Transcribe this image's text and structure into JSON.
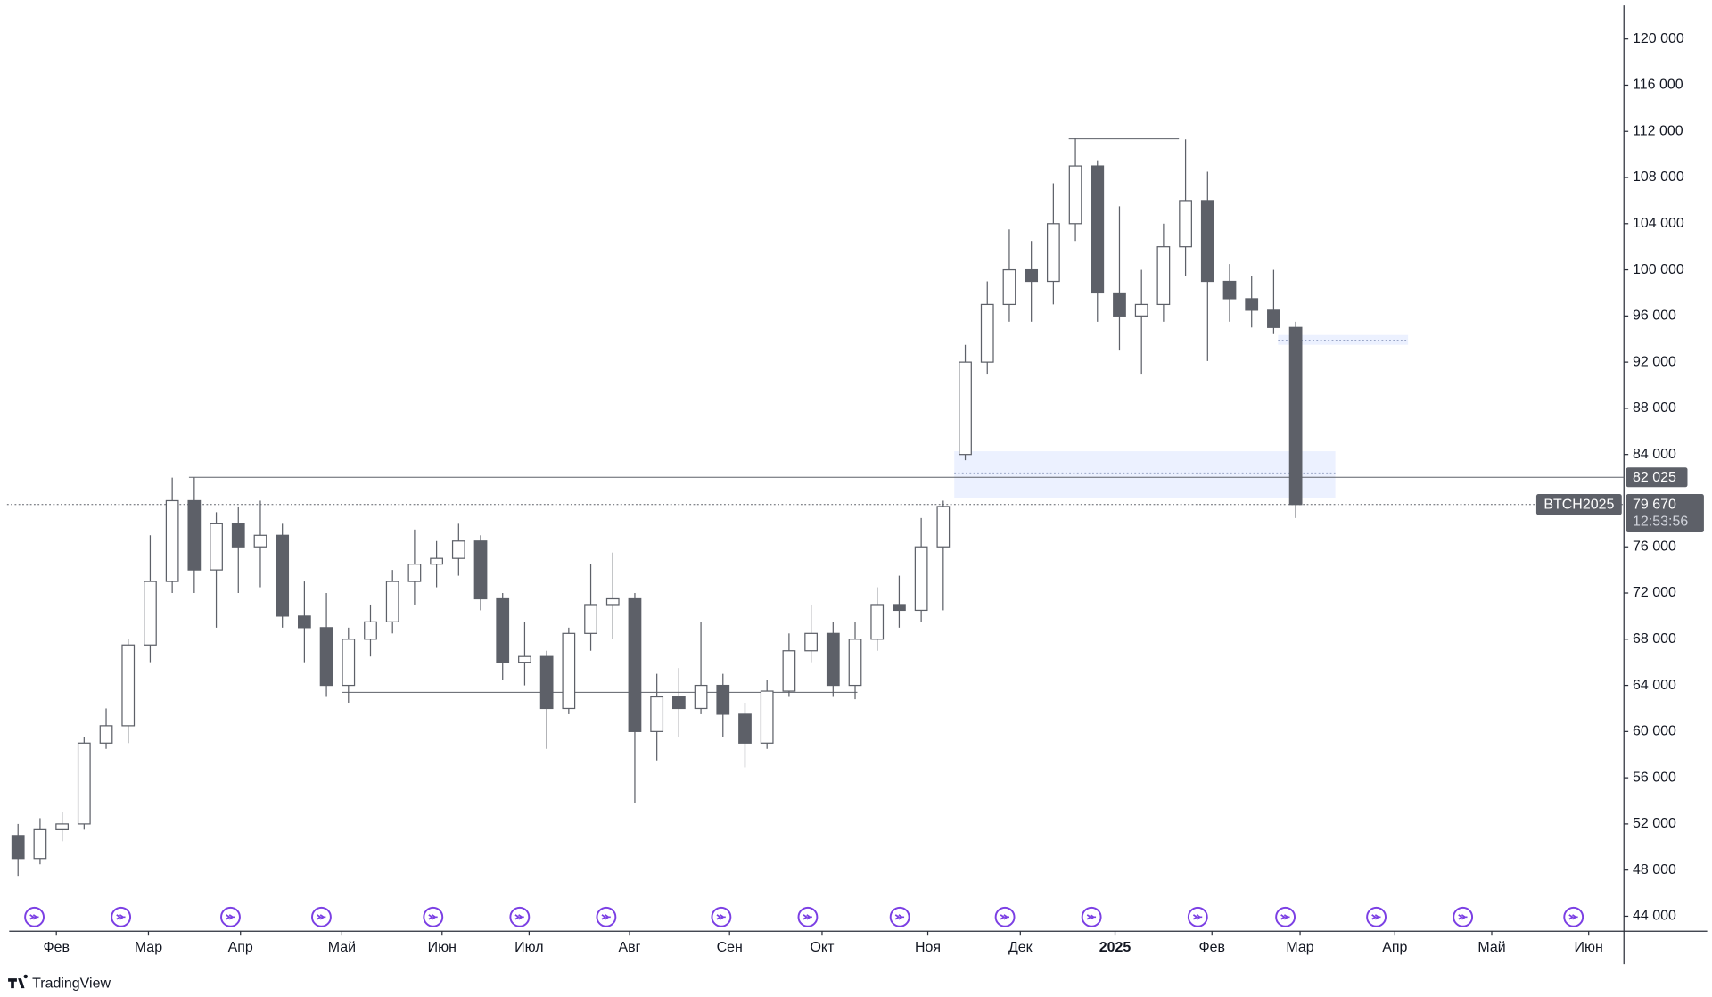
{
  "chart_data": {
    "type": "candlestick",
    "symbol": "BTCH2025",
    "countdown": "12:53:56",
    "brand": "TradingView",
    "last_price": {
      "value": 79670,
      "label": "79 670"
    },
    "up_color": "#ffffff",
    "down_color": "#5d6068",
    "xlim": [
      -0.5,
      72.9
    ],
    "ylim": [
      42700,
      122900
    ],
    "yticks": [
      {
        "value": 44000,
        "label": "44 000"
      },
      {
        "value": 48000,
        "label": "48 000"
      },
      {
        "value": 52000,
        "label": "52 000"
      },
      {
        "value": 56000,
        "label": "56 000"
      },
      {
        "value": 60000,
        "label": "60 000"
      },
      {
        "value": 64000,
        "label": "64 000"
      },
      {
        "value": 68000,
        "label": "68 000"
      },
      {
        "value": 72000,
        "label": "72 000"
      },
      {
        "value": 76000,
        "label": "76 000"
      },
      {
        "value": 84000,
        "label": "84 000"
      },
      {
        "value": 88000,
        "label": "88 000"
      },
      {
        "value": 92000,
        "label": "92 000"
      },
      {
        "value": 96000,
        "label": "96 000"
      },
      {
        "value": 100000,
        "label": "100 000"
      },
      {
        "value": 104000,
        "label": "104 000"
      },
      {
        "value": 108000,
        "label": "108 000"
      },
      {
        "value": 112000,
        "label": "112 000"
      },
      {
        "value": 116000,
        "label": "116 000"
      },
      {
        "value": 120000,
        "label": "120 000"
      }
    ],
    "xticks": [
      {
        "value": 1.74,
        "label": "Фев"
      },
      {
        "value": 5.92,
        "label": "Мар"
      },
      {
        "value": 10.1,
        "label": "Апр"
      },
      {
        "value": 14.7,
        "label": "Май"
      },
      {
        "value": 19.25,
        "label": "Июн"
      },
      {
        "value": 23.2,
        "label": "Июл"
      },
      {
        "value": 27.76,
        "label": "Авг"
      },
      {
        "value": 32.3,
        "label": "Сен"
      },
      {
        "value": 36.5,
        "label": "Окт"
      },
      {
        "value": 41.3,
        "label": "Ноя"
      },
      {
        "value": 45.5,
        "label": "Дек"
      },
      {
        "value": 49.8,
        "label": "2025"
      },
      {
        "value": 54.2,
        "label": "Фев"
      },
      {
        "value": 58.2,
        "label": "Мар"
      },
      {
        "value": 62.5,
        "label": "Апр"
      },
      {
        "value": 66.9,
        "label": "Май"
      },
      {
        "value": 71.3,
        "label": "Июн"
      }
    ],
    "open": [
      51000,
      49000,
      51500,
      52000,
      59000,
      60500,
      67500,
      73000,
      80000,
      74000,
      78000,
      76000,
      77000,
      70000,
      69000,
      64000,
      68000,
      69500,
      73000,
      74500,
      75000,
      76500,
      71500,
      66000,
      66500,
      62000,
      68500,
      71000,
      71500,
      60000,
      63000,
      62000,
      64000,
      61500,
      59000,
      63500,
      67000,
      68500,
      64000,
      68000,
      71000,
      70500,
      76000,
      84000,
      92000,
      97000,
      100000,
      99000,
      104000,
      109000,
      98000,
      96000,
      97000,
      102000,
      106000,
      99000,
      97500,
      96500,
      95000
    ],
    "high": [
      52000,
      52500,
      53000,
      59500,
      62000,
      68000,
      77000,
      82000,
      82000,
      79000,
      79500,
      80000,
      78000,
      73000,
      72000,
      69000,
      71000,
      74000,
      77500,
      76500,
      78000,
      77000,
      72000,
      69500,
      67000,
      69000,
      74500,
      75500,
      72000,
      65000,
      65500,
      69500,
      65000,
      62500,
      64500,
      68500,
      71000,
      69500,
      69500,
      72500,
      73500,
      78500,
      80000,
      93500,
      99000,
      103500,
      102500,
      107500,
      111400,
      109500,
      105500,
      100000,
      104000,
      111300,
      108500,
      100500,
      99500,
      100000,
      95500
    ],
    "low": [
      47500,
      48500,
      50500,
      51500,
      58500,
      59000,
      66000,
      72000,
      72000,
      69000,
      72000,
      72500,
      69000,
      66000,
      63000,
      62500,
      66500,
      68500,
      71000,
      72500,
      73500,
      70500,
      64500,
      64000,
      58500,
      61500,
      67000,
      68000,
      53800,
      57500,
      59500,
      61500,
      59500,
      56900,
      58500,
      63000,
      66000,
      63000,
      62800,
      67000,
      69000,
      69500,
      70500,
      83500,
      91000,
      95500,
      95500,
      97000,
      102500,
      95500,
      93000,
      91000,
      95500,
      99500,
      92100,
      95500,
      95000,
      94500,
      78500
    ],
    "close": [
      49000,
      51500,
      52000,
      59000,
      60500,
      67500,
      73000,
      80000,
      74000,
      78000,
      76000,
      77000,
      70000,
      69000,
      64000,
      68000,
      69500,
      73000,
      74500,
      75000,
      76500,
      71500,
      66000,
      66500,
      62000,
      68500,
      71000,
      71500,
      60000,
      63000,
      62000,
      64000,
      61500,
      59000,
      63500,
      67000,
      68500,
      64000,
      68000,
      71000,
      70500,
      76000,
      79500,
      92000,
      97000,
      100000,
      99000,
      104000,
      109000,
      98000,
      96000,
      97000,
      102000,
      106000,
      99000,
      97500,
      96500,
      95000,
      79670
    ],
    "levels": [
      {
        "value": 82025,
        "label": "82 025",
        "from": 7.76
      }
    ],
    "segments": [
      {
        "value": 63400,
        "from": 14.7,
        "to": 38.1
      },
      {
        "value": 111350,
        "from": 47.7,
        "to": 52.7
      }
    ],
    "zones": [
      {
        "low": 80200,
        "high": 84280,
        "mid": 82400,
        "from": 42.5,
        "to": 59.8
      },
      {
        "low": 93500,
        "high": 94350,
        "mid": 93900,
        "from": 57.2,
        "to": 63.1
      }
    ]
  }
}
